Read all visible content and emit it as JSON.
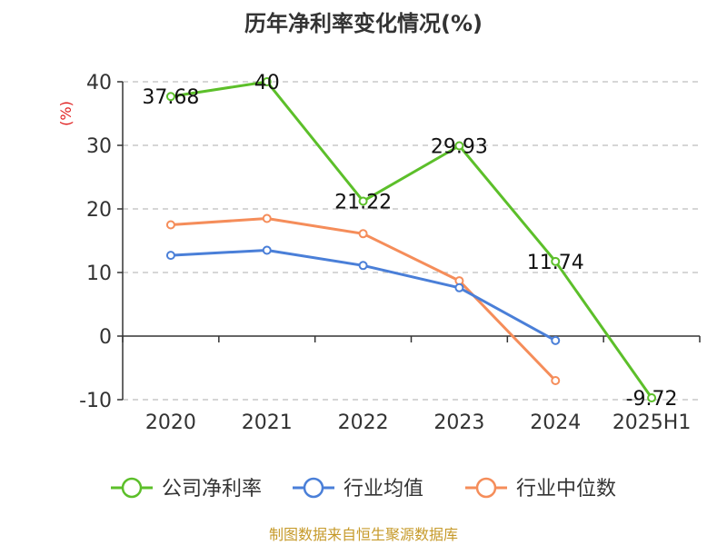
{
  "chart_data": {
    "type": "line",
    "title": "历年净利率变化情况(%)",
    "ylabel": "(%)",
    "categories": [
      "2020",
      "2021",
      "2022",
      "2023",
      "2024",
      "2025H1"
    ],
    "ylim": [
      -10,
      40
    ],
    "yticks": [
      -10,
      0,
      10,
      20,
      30,
      40
    ],
    "grid": true,
    "legend_position": "bottom",
    "series": [
      {
        "name": "公司净利率",
        "color": "#5cbf2a",
        "values": [
          37.68,
          40,
          21.22,
          29.93,
          11.74,
          -9.72
        ],
        "labels": [
          "37.68",
          "40",
          "21.22",
          "29.93",
          "11.74",
          "-9.72"
        ]
      },
      {
        "name": "行业均值",
        "color": "#4a7fd8",
        "values": [
          12.7,
          13.5,
          11.1,
          7.6,
          -0.7,
          null
        ]
      },
      {
        "name": "行业中位数",
        "color": "#f58d5a",
        "values": [
          17.5,
          18.5,
          16.1,
          8.7,
          -7.0,
          null
        ]
      }
    ]
  },
  "source": "制图数据来自恒生聚源数据库"
}
